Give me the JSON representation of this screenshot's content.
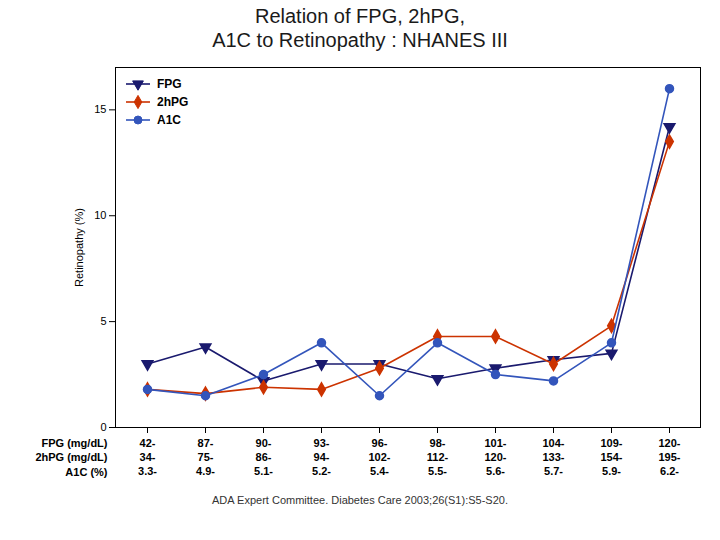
{
  "chart_data": {
    "type": "line",
    "title": "Relation of FPG, 2hPG,\nA1C to Retinopathy : NHANES III",
    "ylabel": "Retinopathy (%)",
    "xlabel": [
      "FPG (mg/dL)",
      "2hPG (mg/dL)",
      "A1C (%)"
    ],
    "categories": [
      "42-\n34-\n3.3-",
      "87-\n75-\n4.9-",
      "90-\n86-\n5.1-",
      "93-\n94-\n5.2-",
      "96-\n102-\n5.4-",
      "98-\n112-\n5.5-",
      "101-\n120-\n5.6-",
      "104-\n133-\n5.7-",
      "109-\n154-\n5.9-",
      "120-\n195-\n6.2-"
    ],
    "series": [
      {
        "name": "FPG",
        "color": "#1a1a6e",
        "marker": "triangle-down",
        "values": [
          3.0,
          3.8,
          2.2,
          3.0,
          3.0,
          2.3,
          2.8,
          3.2,
          3.5,
          14.2
        ]
      },
      {
        "name": "2hPG",
        "color": "#cc3300",
        "marker": "diamond",
        "values": [
          1.8,
          1.6,
          1.9,
          1.8,
          2.8,
          4.3,
          4.3,
          3.0,
          4.8,
          13.5
        ]
      },
      {
        "name": "A1C",
        "color": "#3355bb",
        "marker": "circle",
        "values": [
          1.8,
          1.5,
          2.5,
          4.0,
          1.5,
          4.0,
          2.5,
          2.2,
          4.0,
          16.0
        ]
      }
    ],
    "ylim": [
      0,
      17
    ],
    "yticks": [
      0,
      5,
      10,
      15
    ],
    "grid": false,
    "legend": "upper left",
    "annotations": [
      "ADA Expert Committee. Diabetes Care 2003;26(S1):S5-S20."
    ]
  }
}
